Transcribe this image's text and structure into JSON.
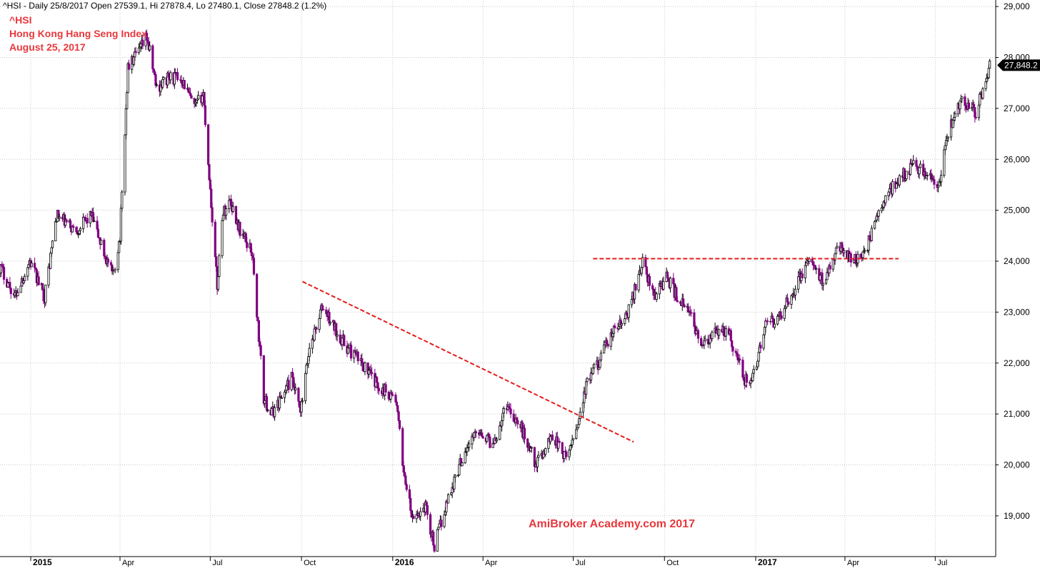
{
  "header": {
    "text": "^HSI - Daily 25/8/2017 Open 27539.1, Hi 27878.4, Lo 27480.1, Close 27848.2 (1.2%)"
  },
  "titles": {
    "symbol": "^HSI",
    "name": "Hong Kong Hang Seng Index",
    "date": "August 25, 2017",
    "color": "#e8383d"
  },
  "watermark": {
    "text": "AmiBroker Academy.com  2017",
    "color": "#e8383d"
  },
  "colors": {
    "up_candle": "#000000",
    "down_candle": "#800080",
    "trendline": "#e51b1b",
    "grid": "#c8c8c8",
    "price_tag_bg": "#000000",
    "price_tag_text": "#ffffff"
  },
  "chart_data": {
    "type": "candlestick",
    "x_axis": {
      "range": [
        "2014-12-01",
        "2017-08-31"
      ],
      "ticks": [
        {
          "date": "2015-01-01",
          "label": "2015",
          "major": true
        },
        {
          "date": "2015-04-01",
          "label": "Apr",
          "major": false
        },
        {
          "date": "2015-07-01",
          "label": "Jul",
          "major": false
        },
        {
          "date": "2015-10-01",
          "label": "Oct",
          "major": false
        },
        {
          "date": "2016-01-01",
          "label": "2016",
          "major": true
        },
        {
          "date": "2016-04-01",
          "label": "Apr",
          "major": false
        },
        {
          "date": "2016-07-01",
          "label": "Jul",
          "major": false
        },
        {
          "date": "2016-10-01",
          "label": "Oct",
          "major": false
        },
        {
          "date": "2017-01-01",
          "label": "2017",
          "major": true
        },
        {
          "date": "2017-04-01",
          "label": "Apr",
          "major": false
        },
        {
          "date": "2017-07-01",
          "label": "Jul",
          "major": false
        }
      ]
    },
    "y_axis": {
      "range": [
        18200,
        29100
      ],
      "ticks": [
        {
          "value": 19000,
          "label": "19,000"
        },
        {
          "value": 20000,
          "label": "20,000"
        },
        {
          "value": 21000,
          "label": "21,000"
        },
        {
          "value": 22000,
          "label": "22,000"
        },
        {
          "value": 23000,
          "label": "23,000"
        },
        {
          "value": 24000,
          "label": "24,000"
        },
        {
          "value": 25000,
          "label": "25,000"
        },
        {
          "value": 26000,
          "label": "26,000"
        },
        {
          "value": 27000,
          "label": "27,000"
        },
        {
          "value": 28000,
          "label": "28,000"
        },
        {
          "value": 29000,
          "label": "29,000"
        }
      ],
      "position": "right"
    },
    "grid": true,
    "last_price": {
      "value": 27848.2,
      "label": "27,848.2"
    },
    "price_path": [
      [
        "2014-12-01",
        23900
      ],
      [
        "2014-12-16",
        23300
      ],
      [
        "2014-12-31",
        24000
      ],
      [
        "2015-01-15",
        23300
      ],
      [
        "2015-01-27",
        24900
      ],
      [
        "2015-02-15",
        24600
      ],
      [
        "2015-03-03",
        24900
      ],
      [
        "2015-03-15",
        24200
      ],
      [
        "2015-03-25",
        23700
      ],
      [
        "2015-04-01",
        24500
      ],
      [
        "2015-04-09",
        27800
      ],
      [
        "2015-04-20",
        28100
      ],
      [
        "2015-04-28",
        28400
      ],
      [
        "2015-05-08",
        27400
      ],
      [
        "2015-05-20",
        27600
      ],
      [
        "2015-06-02",
        27600
      ],
      [
        "2015-06-15",
        27000
      ],
      [
        "2015-06-24",
        27300
      ],
      [
        "2015-07-08",
        23500
      ],
      [
        "2015-07-13",
        24900
      ],
      [
        "2015-07-21",
        25200
      ],
      [
        "2015-07-31",
        24600
      ],
      [
        "2015-08-12",
        24200
      ],
      [
        "2015-08-24",
        21300
      ],
      [
        "2015-09-01",
        21000
      ],
      [
        "2015-09-07",
        21200
      ],
      [
        "2015-09-21",
        21700
      ],
      [
        "2015-09-30",
        21000
      ],
      [
        "2015-10-09",
        22300
      ],
      [
        "2015-10-22",
        23100
      ],
      [
        "2015-11-03",
        22700
      ],
      [
        "2015-11-16",
        22300
      ],
      [
        "2015-12-01",
        22000
      ],
      [
        "2015-12-15",
        21600
      ],
      [
        "2016-01-04",
        21300
      ],
      [
        "2016-01-12",
        19900
      ],
      [
        "2016-01-21",
        18900
      ],
      [
        "2016-02-03",
        19200
      ],
      [
        "2016-02-12",
        18400
      ],
      [
        "2016-02-25",
        19300
      ],
      [
        "2016-03-14",
        20300
      ],
      [
        "2016-03-28",
        20700
      ],
      [
        "2016-04-11",
        20400
      ],
      [
        "2016-04-25",
        21200
      ],
      [
        "2016-05-10",
        20700
      ],
      [
        "2016-05-25",
        20000
      ],
      [
        "2016-06-10",
        20600
      ],
      [
        "2016-06-24",
        20100
      ],
      [
        "2016-07-05",
        20800
      ],
      [
        "2016-07-15",
        21600
      ],
      [
        "2016-07-26",
        22000
      ],
      [
        "2016-08-10",
        22600
      ],
      [
        "2016-08-24",
        22900
      ],
      [
        "2016-09-09",
        24000
      ],
      [
        "2016-09-20",
        23300
      ],
      [
        "2016-10-03",
        23700
      ],
      [
        "2016-10-14",
        23300
      ],
      [
        "2016-10-28",
        22900
      ],
      [
        "2016-11-09",
        22300
      ],
      [
        "2016-11-22",
        22600
      ],
      [
        "2016-12-05",
        22600
      ],
      [
        "2016-12-20",
        21700
      ],
      [
        "2016-12-28",
        21600
      ],
      [
        "2017-01-10",
        22700
      ],
      [
        "2017-01-25",
        22900
      ],
      [
        "2017-02-10",
        23500
      ],
      [
        "2017-02-23",
        24000
      ],
      [
        "2017-03-10",
        23600
      ],
      [
        "2017-03-24",
        24300
      ],
      [
        "2017-04-07",
        24100
      ],
      [
        "2017-04-18",
        24000
      ],
      [
        "2017-05-02",
        24800
      ],
      [
        "2017-05-16",
        25400
      ],
      [
        "2017-05-30",
        25700
      ],
      [
        "2017-06-09",
        25900
      ],
      [
        "2017-06-23",
        25700
      ],
      [
        "2017-07-04",
        25400
      ],
      [
        "2017-07-14",
        26500
      ],
      [
        "2017-07-27",
        27200
      ],
      [
        "2017-08-11",
        26900
      ],
      [
        "2017-08-25",
        27848
      ]
    ],
    "trendlines": [
      {
        "from": [
          "2015-10-02",
          23600
        ],
        "to": [
          "2016-08-31",
          20450
        ],
        "style": "dashed"
      },
      {
        "from": [
          "2016-07-21",
          24050
        ],
        "to": [
          "2017-05-25",
          24050
        ],
        "style": "dashed"
      }
    ]
  }
}
